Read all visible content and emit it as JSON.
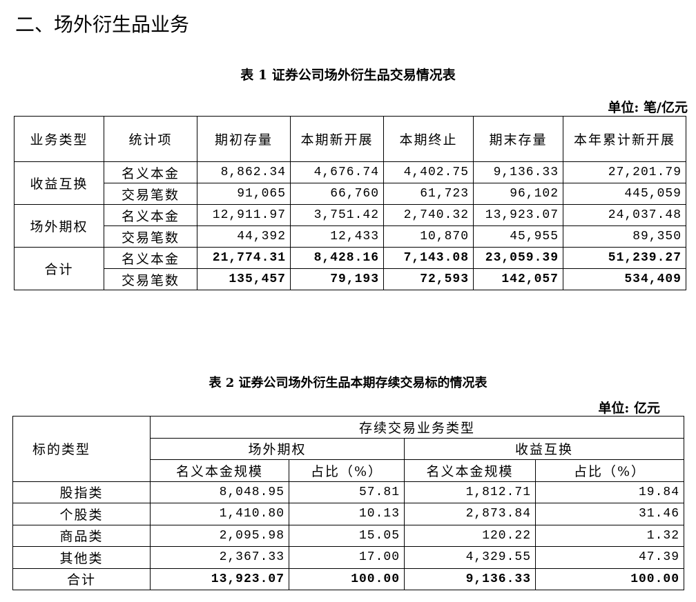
{
  "section_title": "二、场外衍生品业务",
  "table1": {
    "caption": "表 1  证券公司场外衍生品交易情况表",
    "unit": "单位: 笔/亿元",
    "headers": [
      "业务类型",
      "统计项",
      "期初存量",
      "本期新开展",
      "本期终止",
      "期末存量",
      "本年累计新开展"
    ],
    "groups": [
      {
        "type": "收益互换",
        "rows": [
          {
            "item": "名义本金",
            "values": [
              "8,862.34",
              "4,676.74",
              "4,402.75",
              "9,136.33",
              "27,201.79"
            ]
          },
          {
            "item": "交易笔数",
            "values": [
              "91,065",
              "66,760",
              "61,723",
              "96,102",
              "445,059"
            ]
          }
        ]
      },
      {
        "type": "场外期权",
        "rows": [
          {
            "item": "名义本金",
            "values": [
              "12,911.97",
              "3,751.42",
              "2,740.32",
              "13,923.07",
              "24,037.48"
            ]
          },
          {
            "item": "交易笔数",
            "values": [
              "44,392",
              "12,433",
              "10,870",
              "45,955",
              "89,350"
            ]
          }
        ]
      },
      {
        "type": "合计",
        "rows": [
          {
            "item": "名义本金",
            "values": [
              "21,774.31",
              "8,428.16",
              "7,143.08",
              "23,059.39",
              "51,239.27"
            ]
          },
          {
            "item": "交易笔数",
            "values": [
              "135,457",
              "79,193",
              "72,593",
              "142,057",
              "534,409"
            ]
          }
        ]
      }
    ]
  },
  "table2": {
    "caption": "表 2  证券公司场外衍生品本期存续交易标的情况表",
    "unit": "单位: 亿元",
    "header_left": "标的类型",
    "header_top": "存续交易业务类型",
    "header_groups": [
      "场外期权",
      "收益互换"
    ],
    "header_sub": [
      "名义本金规模",
      "占比（%）",
      "名义本金规模",
      "占比（%）"
    ],
    "rows": [
      {
        "label": "股指类",
        "values": [
          "8,048.95",
          "57.81",
          "1,812.71",
          "19.84"
        ]
      },
      {
        "label": "个股类",
        "values": [
          "1,410.80",
          "10.13",
          "2,873.84",
          "31.46"
        ]
      },
      {
        "label": "商品类",
        "values": [
          "2,095.98",
          "15.05",
          "120.22",
          "1.32"
        ]
      },
      {
        "label": "其他类",
        "values": [
          "2,367.33",
          "17.00",
          "4,329.55",
          "47.39"
        ]
      }
    ],
    "total": {
      "label": "合计",
      "values": [
        "13,923.07",
        "100.00",
        "9,136.33",
        "100.00"
      ]
    }
  }
}
